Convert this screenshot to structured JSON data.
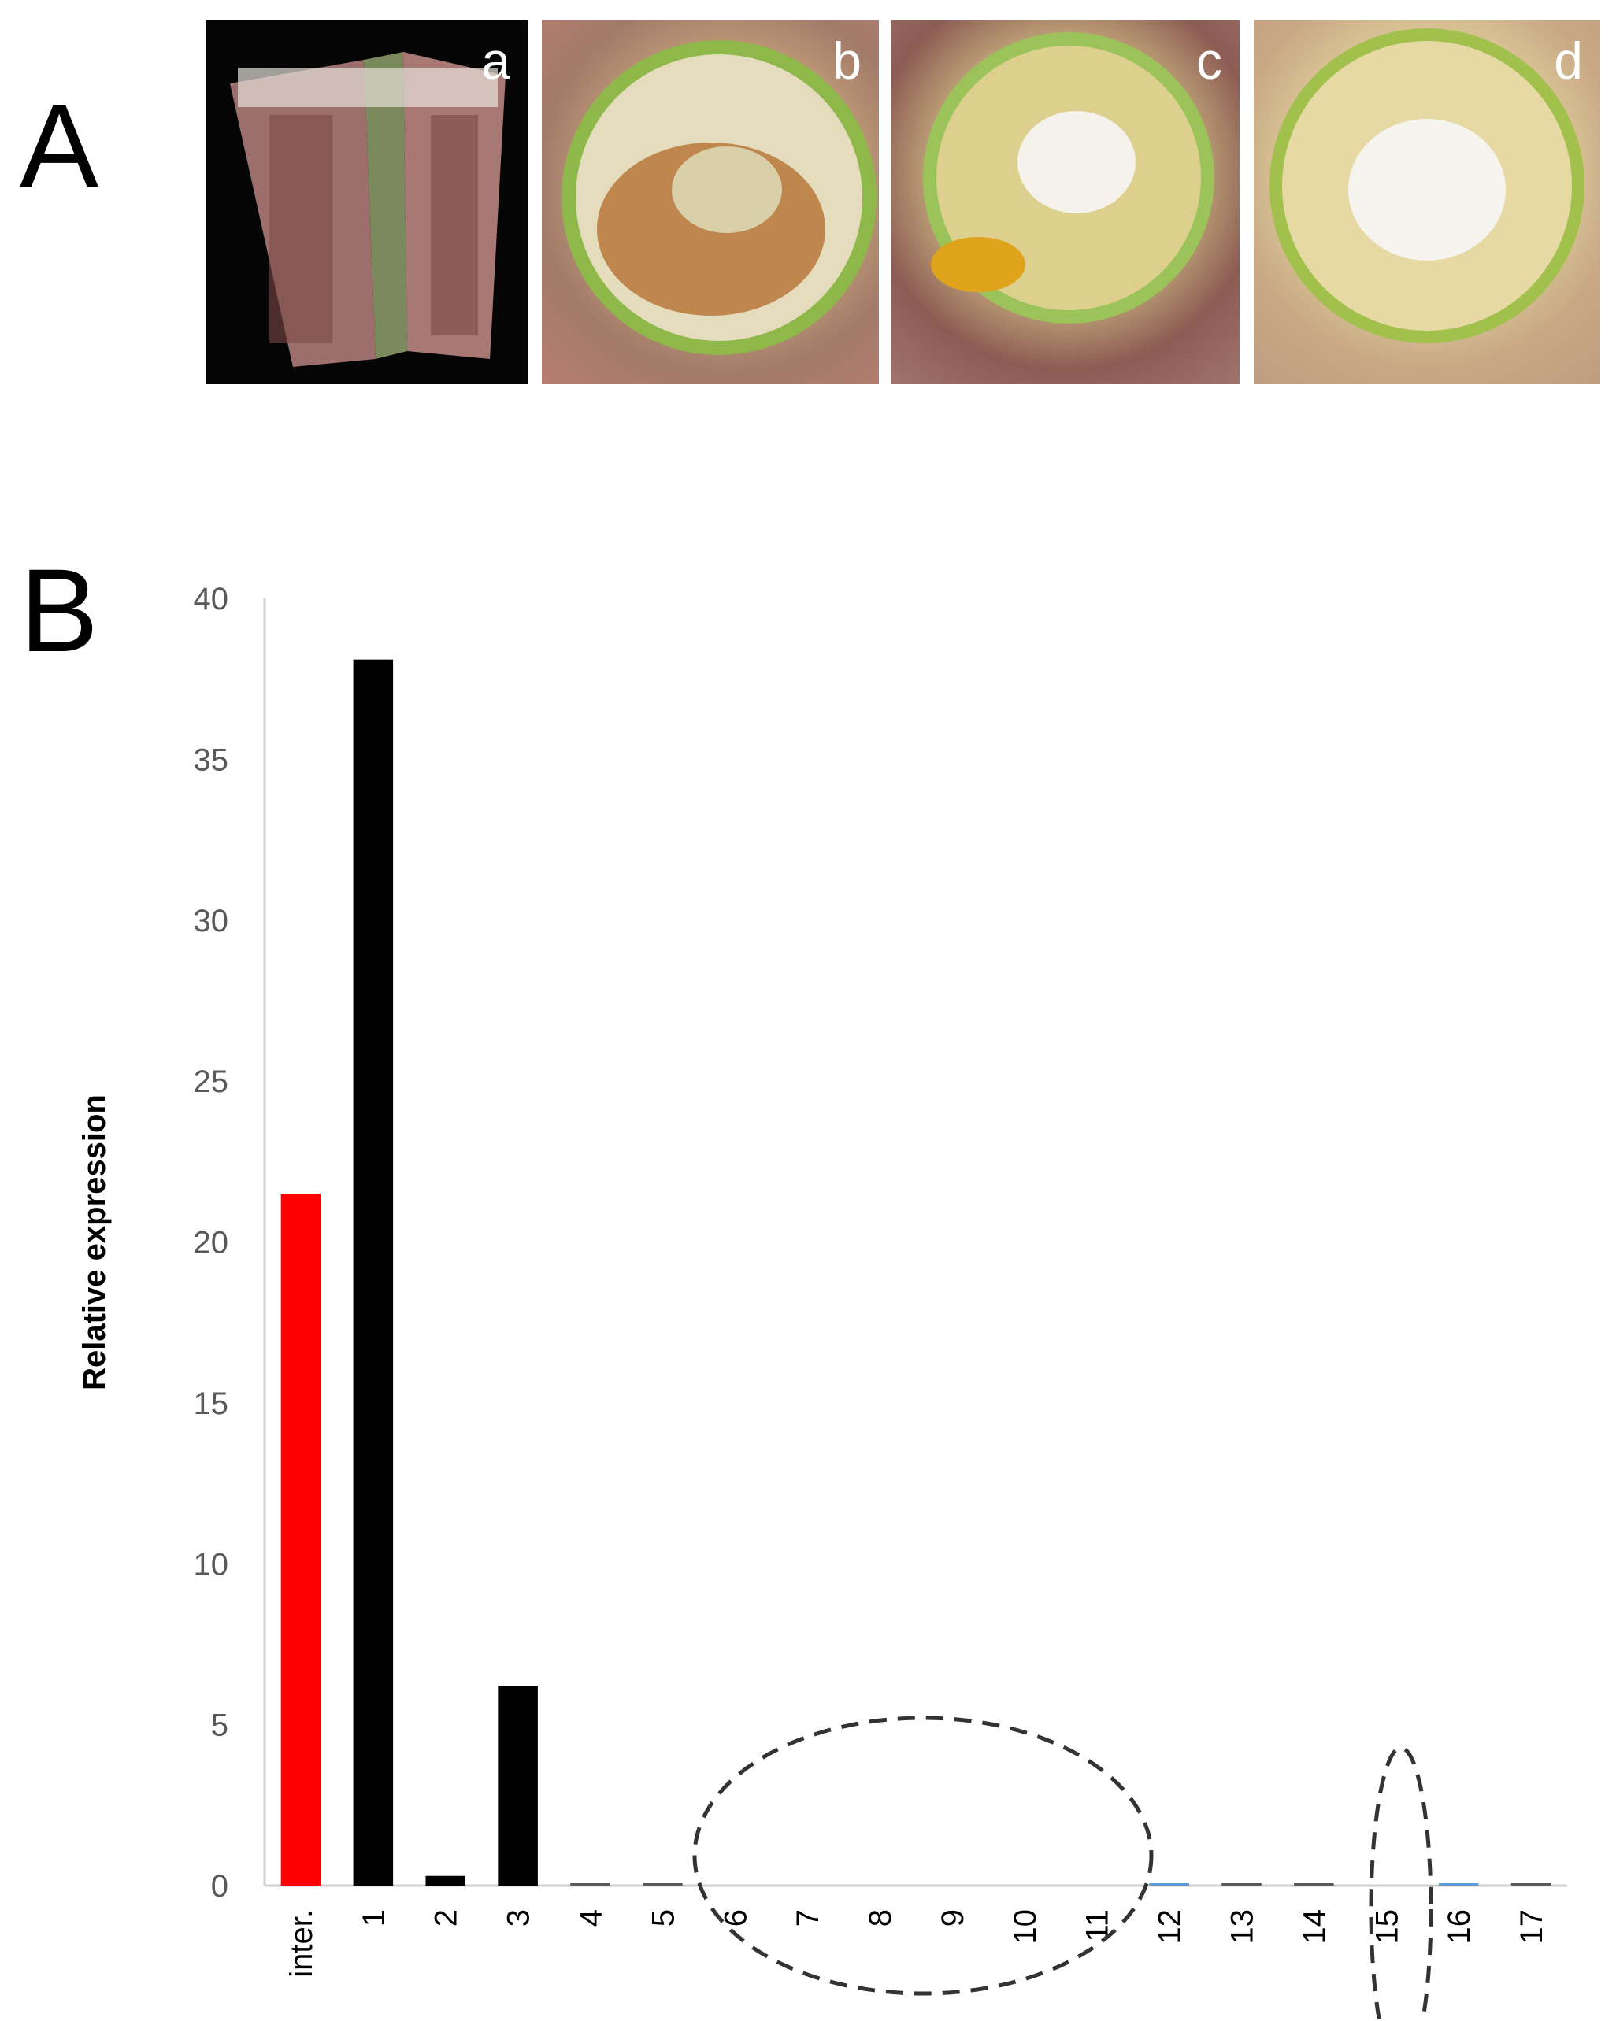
{
  "panels": {
    "a_letter": "A",
    "b_letter": "B",
    "photo_tags": [
      "a",
      "b",
      "c",
      "d"
    ]
  },
  "chart_data": {
    "type": "bar",
    "title": "",
    "xlabel": "",
    "ylabel": "Relative expression",
    "ylim": [
      0,
      40
    ],
    "yticks": [
      0,
      5,
      10,
      15,
      20,
      25,
      30,
      35,
      40
    ],
    "categories": [
      "inter.",
      "1",
      "2",
      "3",
      "4",
      "5",
      "6",
      "7",
      "8",
      "9",
      "10",
      "11",
      "12",
      "13",
      "14",
      "15",
      "16",
      "17"
    ],
    "values": [
      21.5,
      38.1,
      0.3,
      6.2,
      0.05,
      0.05,
      0,
      0,
      0,
      0,
      0,
      0,
      0.05,
      0.05,
      0.05,
      0,
      0.05,
      0.05
    ],
    "bar_colors": [
      "#ff0000",
      "#000000",
      "#000000",
      "#000000",
      "#595959",
      "#595959",
      "#595959",
      "#595959",
      "#595959",
      "#595959",
      "#595959",
      "#595959",
      "#5b9bd5",
      "#595959",
      "#595959",
      "#595959",
      "#5b9bd5",
      "#595959"
    ],
    "grid": false,
    "legend": "none",
    "annotations": [
      {
        "type": "dashed-ellipse",
        "categories": [
          "6",
          "7",
          "8",
          "9",
          "10",
          "11"
        ]
      },
      {
        "type": "dashed-ellipse",
        "categories": [
          "15"
        ]
      }
    ]
  }
}
